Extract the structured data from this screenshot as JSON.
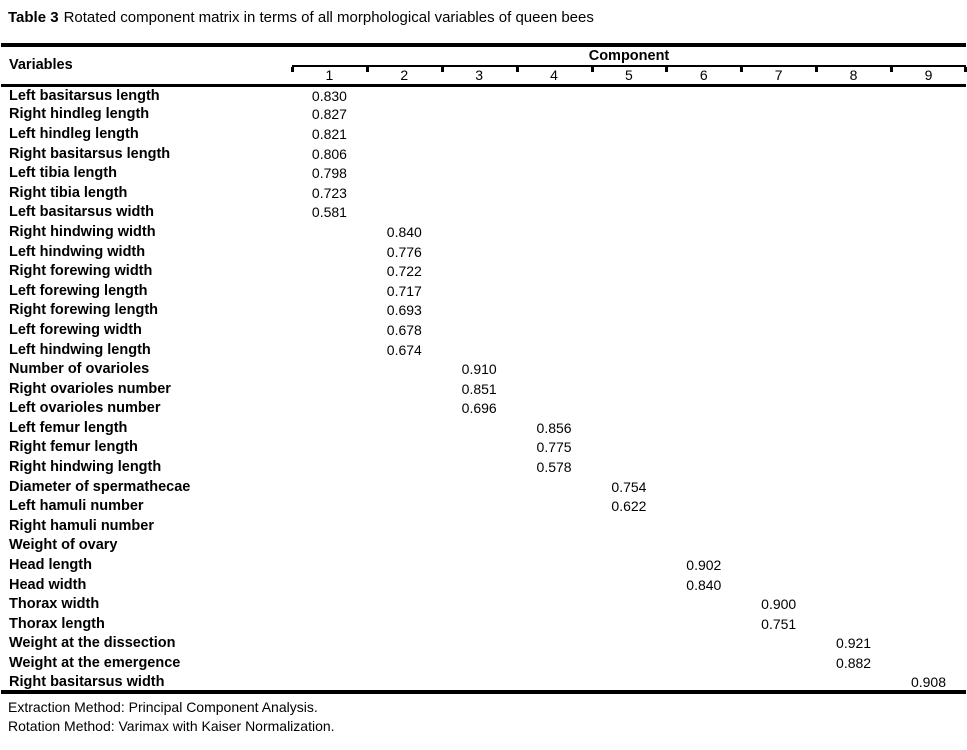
{
  "caption": {
    "label": "Table 3",
    "text": "Rotated component matrix in terms of all morphological variables of queen bees"
  },
  "header": {
    "variables": "Variables",
    "component": "Component",
    "columns": [
      "1",
      "2",
      "3",
      "4",
      "5",
      "6",
      "7",
      "8",
      "9"
    ]
  },
  "rows": [
    {
      "label": "Left basitarsus length",
      "component": 1,
      "value": "0.830"
    },
    {
      "label": "Right hindleg length",
      "component": 1,
      "value": "0.827"
    },
    {
      "label": "Left hindleg length",
      "component": 1,
      "value": "0.821"
    },
    {
      "label": "Right basitarsus length",
      "component": 1,
      "value": "0.806"
    },
    {
      "label": "Left tibia length",
      "component": 1,
      "value": "0.798"
    },
    {
      "label": "Right tibia length",
      "component": 1,
      "value": "0.723"
    },
    {
      "label": "Left basitarsus width",
      "component": 1,
      "value": "0.581"
    },
    {
      "label": "Right hindwing width",
      "component": 2,
      "value": "0.840"
    },
    {
      "label": "Left hindwing width",
      "component": 2,
      "value": "0.776"
    },
    {
      "label": "Right forewing width",
      "component": 2,
      "value": "0.722"
    },
    {
      "label": "Left forewing length",
      "component": 2,
      "value": "0.717"
    },
    {
      "label": "Right forewing length",
      "component": 2,
      "value": "0.693"
    },
    {
      "label": "Left forewing width",
      "component": 2,
      "value": "0.678"
    },
    {
      "label": "Left hindwing length",
      "component": 2,
      "value": "0.674"
    },
    {
      "label": "Number of ovarioles",
      "component": 3,
      "value": "0.910"
    },
    {
      "label": "Right ovarioles number",
      "component": 3,
      "value": "0.851"
    },
    {
      "label": "Left ovarioles number",
      "component": 3,
      "value": "0.696"
    },
    {
      "label": "Left femur length",
      "component": 4,
      "value": "0.856"
    },
    {
      "label": "Right femur length",
      "component": 4,
      "value": "0.775"
    },
    {
      "label": "Right hindwing length",
      "component": 4,
      "value": "0.578"
    },
    {
      "label": "Diameter of spermathecae",
      "component": 5,
      "value": "0.754"
    },
    {
      "label": "Left hamuli number",
      "component": 5,
      "value": "0.622"
    },
    {
      "label": "Right hamuli number",
      "component": null,
      "value": ""
    },
    {
      "label": "Weight of ovary",
      "component": null,
      "value": ""
    },
    {
      "label": "Head length",
      "component": 6,
      "value": "0.902"
    },
    {
      "label": "Head width",
      "component": 6,
      "value": "0.840"
    },
    {
      "label": "Thorax width",
      "component": 7,
      "value": "0.900"
    },
    {
      "label": "Thorax length",
      "component": 7,
      "value": "0.751"
    },
    {
      "label": "Weight at the dissection",
      "component": 8,
      "value": "0.921"
    },
    {
      "label": "Weight at the emergence",
      "component": 8,
      "value": "0.882"
    },
    {
      "label": "Right basitarsus width",
      "component": 9,
      "value": "0.908"
    }
  ],
  "footnotes": [
    "Extraction Method: Principal Component Analysis.",
    "Rotation Method: Varimax with Kaiser Normalization."
  ],
  "colors": {
    "text": "#000000",
    "background": "#ffffff",
    "rule": "#000000"
  }
}
